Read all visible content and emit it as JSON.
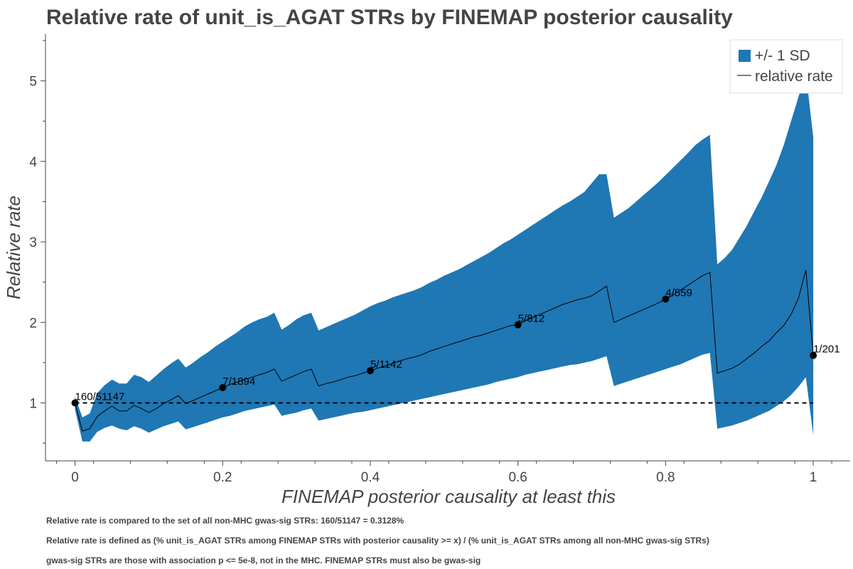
{
  "chart_data": {
    "type": "line",
    "title": "Relative rate of unit_is_AGAT STRs by FINEMAP posterior causality",
    "xlabel": "FINEMAP posterior causality at least this",
    "ylabel": "Relative rate",
    "xlim": [
      -0.04,
      1.05
    ],
    "ylim": [
      0.28,
      5.58
    ],
    "x_ticks": [
      0,
      0.2,
      0.4,
      0.6,
      0.8,
      1
    ],
    "x_tick_labels": [
      "0",
      "0.2",
      "0.4",
      "0.6",
      "0.8",
      "1"
    ],
    "y_ticks": [
      1,
      2,
      3,
      4,
      5
    ],
    "y_tick_labels": [
      "1",
      "2",
      "3",
      "4",
      "5"
    ],
    "grid": false,
    "legend_position": "top-right",
    "series": [
      {
        "name": "relative rate",
        "color": "#000000",
        "x": [
          0,
          0.01,
          0.02,
          0.03,
          0.04,
          0.05,
          0.06,
          0.07,
          0.08,
          0.09,
          0.1,
          0.11,
          0.12,
          0.13,
          0.14,
          0.15,
          0.16,
          0.17,
          0.18,
          0.19,
          0.2,
          0.21,
          0.22,
          0.23,
          0.24,
          0.25,
          0.26,
          0.27,
          0.28,
          0.29,
          0.3,
          0.31,
          0.32,
          0.33,
          0.34,
          0.35,
          0.36,
          0.37,
          0.38,
          0.39,
          0.4,
          0.41,
          0.42,
          0.43,
          0.44,
          0.45,
          0.46,
          0.47,
          0.48,
          0.49,
          0.5,
          0.51,
          0.52,
          0.53,
          0.54,
          0.55,
          0.56,
          0.57,
          0.58,
          0.59,
          0.6,
          0.61,
          0.62,
          0.63,
          0.64,
          0.65,
          0.66,
          0.67,
          0.68,
          0.69,
          0.7,
          0.71,
          0.72,
          0.73,
          0.74,
          0.75,
          0.76,
          0.77,
          0.78,
          0.79,
          0.8,
          0.81,
          0.82,
          0.83,
          0.84,
          0.85,
          0.86,
          0.87,
          0.88,
          0.89,
          0.9,
          0.91,
          0.92,
          0.93,
          0.94,
          0.95,
          0.96,
          0.97,
          0.98,
          0.99,
          1
        ],
        "values": [
          1.0,
          0.65,
          0.68,
          0.83,
          0.9,
          0.96,
          0.9,
          0.9,
          0.97,
          0.93,
          0.88,
          0.93,
          0.99,
          1.04,
          1.09,
          0.99,
          1.03,
          1.07,
          1.11,
          1.15,
          1.19,
          1.23,
          1.26,
          1.29,
          1.32,
          1.35,
          1.38,
          1.42,
          1.27,
          1.31,
          1.35,
          1.39,
          1.42,
          1.21,
          1.24,
          1.26,
          1.29,
          1.32,
          1.34,
          1.37,
          1.4,
          1.43,
          1.46,
          1.49,
          1.52,
          1.55,
          1.57,
          1.6,
          1.64,
          1.67,
          1.7,
          1.73,
          1.76,
          1.79,
          1.82,
          1.84,
          1.87,
          1.9,
          1.93,
          1.96,
          1.97,
          2.02,
          2.06,
          2.1,
          2.14,
          2.18,
          2.22,
          2.25,
          2.28,
          2.3,
          2.33,
          2.39,
          2.45,
          2.0,
          2.04,
          2.08,
          2.12,
          2.16,
          2.2,
          2.24,
          2.29,
          2.34,
          2.4,
          2.46,
          2.52,
          2.58,
          2.62,
          1.37,
          1.4,
          1.43,
          1.48,
          1.55,
          1.62,
          1.7,
          1.77,
          1.87,
          1.96,
          2.1,
          2.3,
          2.65,
          1.59
        ]
      }
    ],
    "band": {
      "name": "+/- 1 SD",
      "color": "#1f77b4",
      "x": [
        0,
        0.01,
        0.02,
        0.03,
        0.04,
        0.05,
        0.06,
        0.07,
        0.08,
        0.09,
        0.1,
        0.11,
        0.12,
        0.13,
        0.14,
        0.15,
        0.16,
        0.17,
        0.18,
        0.19,
        0.2,
        0.21,
        0.22,
        0.23,
        0.24,
        0.25,
        0.26,
        0.27,
        0.28,
        0.29,
        0.3,
        0.31,
        0.32,
        0.33,
        0.34,
        0.35,
        0.36,
        0.37,
        0.38,
        0.39,
        0.4,
        0.41,
        0.42,
        0.43,
        0.44,
        0.45,
        0.46,
        0.47,
        0.48,
        0.49,
        0.5,
        0.51,
        0.52,
        0.53,
        0.54,
        0.55,
        0.56,
        0.57,
        0.58,
        0.59,
        0.6,
        0.61,
        0.62,
        0.63,
        0.64,
        0.65,
        0.66,
        0.67,
        0.68,
        0.69,
        0.7,
        0.71,
        0.72,
        0.73,
        0.74,
        0.75,
        0.76,
        0.77,
        0.78,
        0.79,
        0.8,
        0.81,
        0.82,
        0.83,
        0.84,
        0.85,
        0.86,
        0.87,
        0.88,
        0.89,
        0.9,
        0.91,
        0.92,
        0.93,
        0.94,
        0.95,
        0.96,
        0.97,
        0.98,
        0.99,
        1
      ],
      "upper": [
        1.08,
        0.82,
        0.87,
        1.12,
        1.22,
        1.29,
        1.24,
        1.24,
        1.35,
        1.32,
        1.26,
        1.34,
        1.42,
        1.49,
        1.55,
        1.44,
        1.5,
        1.57,
        1.63,
        1.7,
        1.76,
        1.82,
        1.88,
        1.95,
        2.0,
        2.04,
        2.07,
        2.12,
        1.91,
        1.97,
        2.04,
        2.09,
        2.12,
        1.9,
        1.94,
        1.98,
        2.02,
        2.06,
        2.1,
        2.15,
        2.2,
        2.24,
        2.27,
        2.31,
        2.34,
        2.37,
        2.4,
        2.44,
        2.49,
        2.53,
        2.58,
        2.62,
        2.66,
        2.71,
        2.76,
        2.81,
        2.86,
        2.92,
        2.98,
        3.03,
        3.09,
        3.15,
        3.21,
        3.27,
        3.33,
        3.39,
        3.45,
        3.5,
        3.56,
        3.62,
        3.73,
        3.84,
        3.84,
        3.3,
        3.36,
        3.42,
        3.5,
        3.58,
        3.66,
        3.74,
        3.83,
        3.92,
        4.01,
        4.1,
        4.2,
        4.27,
        4.33,
        2.72,
        2.8,
        2.9,
        3.05,
        3.2,
        3.38,
        3.55,
        3.75,
        3.95,
        4.2,
        4.5,
        4.8,
        5.1,
        4.3
      ],
      "lower": [
        0.92,
        0.52,
        0.52,
        0.64,
        0.69,
        0.72,
        0.68,
        0.66,
        0.71,
        0.68,
        0.63,
        0.67,
        0.71,
        0.74,
        0.77,
        0.67,
        0.7,
        0.73,
        0.76,
        0.79,
        0.82,
        0.84,
        0.87,
        0.9,
        0.92,
        0.94,
        0.96,
        0.98,
        0.84,
        0.86,
        0.88,
        0.91,
        0.93,
        0.78,
        0.8,
        0.82,
        0.84,
        0.86,
        0.88,
        0.89,
        0.91,
        0.93,
        0.95,
        0.97,
        0.99,
        1.01,
        1.03,
        1.05,
        1.07,
        1.09,
        1.11,
        1.13,
        1.15,
        1.17,
        1.19,
        1.21,
        1.23,
        1.26,
        1.28,
        1.3,
        1.32,
        1.35,
        1.37,
        1.39,
        1.41,
        1.43,
        1.45,
        1.47,
        1.48,
        1.5,
        1.52,
        1.55,
        1.58,
        1.21,
        1.24,
        1.27,
        1.3,
        1.33,
        1.36,
        1.39,
        1.42,
        1.45,
        1.48,
        1.52,
        1.56,
        1.6,
        1.62,
        0.68,
        0.7,
        0.72,
        0.75,
        0.78,
        0.82,
        0.86,
        0.9,
        0.96,
        1.02,
        1.1,
        1.2,
        1.32,
        0.6
      ]
    },
    "reference_line": {
      "y": 1,
      "style": "dashed",
      "color": "#000000",
      "x_range": [
        0,
        1
      ]
    },
    "marked_points": [
      {
        "x": 0,
        "y": 1.0,
        "label": "160/51147"
      },
      {
        "x": 0.2,
        "y": 1.19,
        "label": "7/1894"
      },
      {
        "x": 0.4,
        "y": 1.4,
        "label": "5/1142"
      },
      {
        "x": 0.6,
        "y": 1.97,
        "label": "5/812"
      },
      {
        "x": 0.8,
        "y": 2.29,
        "label": "4/559"
      },
      {
        "x": 1,
        "y": 1.59,
        "label": "1/201"
      }
    ],
    "legend": [
      {
        "kind": "patch",
        "label": "+/- 1 SD",
        "color": "#1f77b4"
      },
      {
        "kind": "line",
        "label": "relative rate",
        "color": "#000000"
      }
    ]
  },
  "footnotes": [
    "Relative rate is compared to the set of all non-MHC gwas-sig STRs: 160/51147 = 0.3128%",
    "Relative rate is defined as (% unit_is_AGAT STRs among FINEMAP STRs with posterior causality >= x) / (% unit_is_AGAT STRs among all non-MHC gwas-sig STRs)",
    "gwas-sig STRs are those with association p <= 5e-8, not in the MHC. FINEMAP STRs must also be gwas-sig"
  ]
}
